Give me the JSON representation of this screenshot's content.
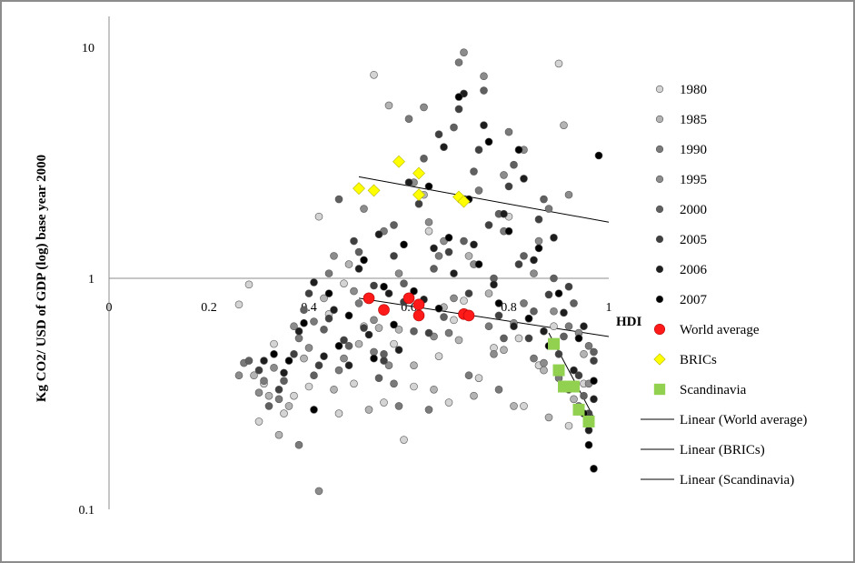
{
  "chart_data": {
    "type": "scatter",
    "title": "",
    "xlabel": "HDI",
    "ylabel": "Kg CO2/ USD of GDP (log) base year 2000",
    "xlim": [
      0,
      1
    ],
    "ylim": [
      0.1,
      10
    ],
    "y_scale": "log",
    "x_ticks": [
      "0",
      "0.2",
      "0.4",
      "0.6",
      "0.8",
      "1"
    ],
    "y_ticks": [
      "10",
      "1",
      "0.1"
    ],
    "grid": false,
    "legend_position": "right",
    "series": [
      {
        "name": "1980",
        "color": "#d4d4d4",
        "marker": "circle",
        "points": [
          [
            0.26,
            0.77
          ],
          [
            0.28,
            0.94
          ],
          [
            0.31,
            0.35
          ],
          [
            0.33,
            0.52
          ],
          [
            0.35,
            0.26
          ],
          [
            0.37,
            0.31
          ],
          [
            0.4,
            0.34
          ],
          [
            0.42,
            1.85
          ],
          [
            0.44,
            0.7
          ],
          [
            0.46,
            0.26
          ],
          [
            0.49,
            0.35
          ],
          [
            0.51,
            0.62
          ],
          [
            0.53,
            7.6
          ],
          [
            0.55,
            0.29
          ],
          [
            0.57,
            0.52
          ],
          [
            0.59,
            0.2
          ],
          [
            0.61,
            0.34
          ],
          [
            0.64,
            1.6
          ],
          [
            0.66,
            0.46
          ],
          [
            0.68,
            0.29
          ],
          [
            0.71,
            0.8
          ],
          [
            0.74,
            0.37
          ],
          [
            0.77,
            0.5
          ],
          [
            0.8,
            1.85
          ],
          [
            0.83,
            0.28
          ],
          [
            0.86,
            0.42
          ],
          [
            0.89,
            0.62
          ],
          [
            0.9,
            8.5
          ],
          [
            0.92,
            0.23
          ],
          [
            0.95,
            0.35
          ],
          [
            0.3,
            0.24
          ],
          [
            0.47,
            0.95
          ],
          [
            0.69,
            0.66
          ],
          [
            0.82,
            0.55
          ]
        ]
      },
      {
        "name": "1985",
        "color": "#b4b4b4",
        "marker": "circle",
        "points": [
          [
            0.29,
            0.38
          ],
          [
            0.32,
            0.31
          ],
          [
            0.36,
            0.28
          ],
          [
            0.39,
            0.45
          ],
          [
            0.43,
            0.82
          ],
          [
            0.45,
            0.33
          ],
          [
            0.48,
            1.15
          ],
          [
            0.5,
            0.52
          ],
          [
            0.52,
            0.27
          ],
          [
            0.56,
            5.6
          ],
          [
            0.58,
            0.6
          ],
          [
            0.61,
            0.42
          ],
          [
            0.63,
            2.3
          ],
          [
            0.65,
            0.33
          ],
          [
            0.67,
            0.75
          ],
          [
            0.7,
            0.54
          ],
          [
            0.73,
            0.31
          ],
          [
            0.76,
            0.86
          ],
          [
            0.79,
            0.49
          ],
          [
            0.81,
            0.28
          ],
          [
            0.84,
            0.67
          ],
          [
            0.87,
            0.4
          ],
          [
            0.91,
            4.6
          ],
          [
            0.93,
            0.3
          ],
          [
            0.95,
            0.47
          ],
          [
            0.34,
            0.21
          ],
          [
            0.54,
            0.61
          ],
          [
            0.72,
            1.25
          ],
          [
            0.88,
            0.25
          ]
        ]
      },
      {
        "name": "1990",
        "color": "#7a7a7a",
        "marker": "circle",
        "points": [
          [
            0.27,
            0.43
          ],
          [
            0.31,
            0.36
          ],
          [
            0.34,
            0.3
          ],
          [
            0.38,
            0.55
          ],
          [
            0.41,
            0.65
          ],
          [
            0.44,
            1.05
          ],
          [
            0.46,
            0.4
          ],
          [
            0.5,
            0.78
          ],
          [
            0.53,
            0.48
          ],
          [
            0.55,
            1.6
          ],
          [
            0.57,
            0.35
          ],
          [
            0.6,
            4.9
          ],
          [
            0.62,
            0.7
          ],
          [
            0.64,
            0.27
          ],
          [
            0.66,
            1.25
          ],
          [
            0.68,
            0.58
          ],
          [
            0.7,
            8.6
          ],
          [
            0.72,
            0.38
          ],
          [
            0.74,
            2.4
          ],
          [
            0.76,
            0.62
          ],
          [
            0.78,
            0.33
          ],
          [
            0.8,
            4.3
          ],
          [
            0.83,
            0.78
          ],
          [
            0.85,
            0.45
          ],
          [
            0.88,
            2.0
          ],
          [
            0.9,
            0.37
          ],
          [
            0.92,
            0.62
          ],
          [
            0.94,
            0.28
          ],
          [
            0.96,
            0.51
          ],
          [
            0.38,
            0.19
          ],
          [
            0.58,
            0.28
          ],
          [
            0.79,
            1.6
          ]
        ]
      },
      {
        "name": "1995",
        "color": "#8c8c8c",
        "marker": "circle",
        "points": [
          [
            0.26,
            0.38
          ],
          [
            0.3,
            0.32
          ],
          [
            0.33,
            0.41
          ],
          [
            0.37,
            0.62
          ],
          [
            0.4,
            0.5
          ],
          [
            0.42,
            0.12
          ],
          [
            0.45,
            1.25
          ],
          [
            0.47,
            0.45
          ],
          [
            0.49,
            0.88
          ],
          [
            0.51,
            2.0
          ],
          [
            0.53,
            0.66
          ],
          [
            0.56,
            0.42
          ],
          [
            0.58,
            1.05
          ],
          [
            0.61,
            2.6
          ],
          [
            0.63,
            5.5
          ],
          [
            0.65,
            0.56
          ],
          [
            0.67,
            1.45
          ],
          [
            0.69,
            0.82
          ],
          [
            0.71,
            9.5
          ],
          [
            0.73,
            1.15
          ],
          [
            0.75,
            7.5
          ],
          [
            0.77,
            0.47
          ],
          [
            0.79,
            2.8
          ],
          [
            0.81,
            0.64
          ],
          [
            0.83,
            3.6
          ],
          [
            0.85,
            1.05
          ],
          [
            0.87,
            0.43
          ],
          [
            0.89,
            0.72
          ],
          [
            0.92,
            2.3
          ],
          [
            0.94,
            0.58
          ],
          [
            0.96,
            0.35
          ],
          [
            0.64,
            1.75
          ],
          [
            0.86,
            1.45
          ]
        ]
      },
      {
        "name": "2000",
        "color": "#606060",
        "marker": "circle",
        "points": [
          [
            0.28,
            0.44
          ],
          [
            0.32,
            0.28
          ],
          [
            0.35,
            0.36
          ],
          [
            0.39,
            0.73
          ],
          [
            0.41,
            0.38
          ],
          [
            0.43,
            0.6
          ],
          [
            0.46,
            2.2
          ],
          [
            0.48,
            0.51
          ],
          [
            0.5,
            1.3
          ],
          [
            0.52,
            0.82
          ],
          [
            0.54,
            0.37
          ],
          [
            0.57,
            1.7
          ],
          [
            0.59,
            0.95
          ],
          [
            0.61,
            0.59
          ],
          [
            0.63,
            3.3
          ],
          [
            0.65,
            1.1
          ],
          [
            0.67,
            0.68
          ],
          [
            0.69,
            4.5
          ],
          [
            0.71,
            1.45
          ],
          [
            0.73,
            2.9
          ],
          [
            0.75,
            6.5
          ],
          [
            0.77,
            1.0
          ],
          [
            0.79,
            0.55
          ],
          [
            0.81,
            3.1
          ],
          [
            0.83,
            1.25
          ],
          [
            0.85,
            0.72
          ],
          [
            0.87,
            2.2
          ],
          [
            0.89,
            1.0
          ],
          [
            0.91,
            0.56
          ],
          [
            0.93,
            0.78
          ],
          [
            0.95,
            0.31
          ],
          [
            0.97,
            0.48
          ],
          [
            0.55,
            0.47
          ],
          [
            0.78,
            1.9
          ]
        ]
      },
      {
        "name": "2005",
        "color": "#404040",
        "marker": "circle",
        "points": [
          [
            0.3,
            0.4
          ],
          [
            0.34,
            0.33
          ],
          [
            0.37,
            0.47
          ],
          [
            0.4,
            0.86
          ],
          [
            0.42,
            0.42
          ],
          [
            0.44,
            0.67
          ],
          [
            0.47,
            0.54
          ],
          [
            0.49,
            1.45
          ],
          [
            0.51,
            0.61
          ],
          [
            0.53,
            0.93
          ],
          [
            0.55,
            0.44
          ],
          [
            0.57,
            1.25
          ],
          [
            0.59,
            0.79
          ],
          [
            0.62,
            2.1
          ],
          [
            0.64,
            0.58
          ],
          [
            0.66,
            4.2
          ],
          [
            0.68,
            1.3
          ],
          [
            0.7,
            5.4
          ],
          [
            0.72,
            0.86
          ],
          [
            0.74,
            3.6
          ],
          [
            0.76,
            1.7
          ],
          [
            0.78,
            0.69
          ],
          [
            0.8,
            2.5
          ],
          [
            0.82,
            1.15
          ],
          [
            0.84,
            0.55
          ],
          [
            0.86,
            1.8
          ],
          [
            0.88,
            0.85
          ],
          [
            0.9,
            0.47
          ],
          [
            0.92,
            0.92
          ],
          [
            0.94,
            0.38
          ],
          [
            0.96,
            0.26
          ],
          [
            0.97,
            0.44
          ]
        ]
      },
      {
        "name": "2006",
        "color": "#1e1e1e",
        "marker": "circle",
        "points": [
          [
            0.31,
            0.44
          ],
          [
            0.35,
            0.39
          ],
          [
            0.38,
            0.59
          ],
          [
            0.41,
            0.96
          ],
          [
            0.43,
            0.46
          ],
          [
            0.45,
            0.73
          ],
          [
            0.48,
            0.42
          ],
          [
            0.5,
            1.1
          ],
          [
            0.52,
            0.57
          ],
          [
            0.54,
            1.55
          ],
          [
            0.56,
            0.86
          ],
          [
            0.58,
            0.49
          ],
          [
            0.6,
            2.6
          ],
          [
            0.63,
            0.81
          ],
          [
            0.65,
            1.35
          ],
          [
            0.67,
            3.7
          ],
          [
            0.69,
            1.05
          ],
          [
            0.71,
            6.3
          ],
          [
            0.73,
            1.4
          ],
          [
            0.75,
            4.6
          ],
          [
            0.77,
            0.94
          ],
          [
            0.79,
            1.9
          ],
          [
            0.81,
            0.62
          ],
          [
            0.83,
            2.7
          ],
          [
            0.85,
            1.2
          ],
          [
            0.87,
            0.59
          ],
          [
            0.89,
            1.5
          ],
          [
            0.91,
            0.71
          ],
          [
            0.93,
            0.4
          ],
          [
            0.95,
            0.62
          ],
          [
            0.96,
            0.22
          ],
          [
            0.97,
            0.3
          ]
        ]
      },
      {
        "name": "2007",
        "color": "#000000",
        "marker": "circle",
        "points": [
          [
            0.33,
            0.47
          ],
          [
            0.36,
            0.44
          ],
          [
            0.39,
            0.64
          ],
          [
            0.41,
            0.27
          ],
          [
            0.44,
            0.86
          ],
          [
            0.46,
            0.51
          ],
          [
            0.48,
            0.69
          ],
          [
            0.51,
            1.2
          ],
          [
            0.53,
            0.45
          ],
          [
            0.55,
            0.92
          ],
          [
            0.57,
            0.63
          ],
          [
            0.59,
            1.4
          ],
          [
            0.61,
            0.88
          ],
          [
            0.64,
            2.5
          ],
          [
            0.66,
            0.74
          ],
          [
            0.68,
            1.5
          ],
          [
            0.7,
            6.1
          ],
          [
            0.72,
            2.2
          ],
          [
            0.74,
            1.15
          ],
          [
            0.76,
            3.9
          ],
          [
            0.78,
            0.78
          ],
          [
            0.8,
            1.6
          ],
          [
            0.82,
            3.6
          ],
          [
            0.84,
            0.67
          ],
          [
            0.86,
            1.35
          ],
          [
            0.88,
            0.51
          ],
          [
            0.9,
            0.86
          ],
          [
            0.92,
            0.33
          ],
          [
            0.94,
            0.55
          ],
          [
            0.96,
            0.19
          ],
          [
            0.97,
            0.15
          ],
          [
            0.97,
            0.36
          ],
          [
            0.95,
            0.26
          ],
          [
            0.98,
            3.4
          ]
        ]
      },
      {
        "name": "World average",
        "color": "#ff1a1a",
        "marker": "circle-large",
        "points": [
          [
            0.52,
            0.82
          ],
          [
            0.55,
            0.73
          ],
          [
            0.6,
            0.82
          ],
          [
            0.62,
            0.77
          ],
          [
            0.62,
            0.69
          ],
          [
            0.71,
            0.7
          ],
          [
            0.72,
            0.69
          ]
        ]
      },
      {
        "name": "BRICs",
        "color": "#ffff00",
        "marker": "diamond",
        "points": [
          [
            0.5,
            2.45
          ],
          [
            0.53,
            2.4
          ],
          [
            0.58,
            3.2
          ],
          [
            0.62,
            2.85
          ],
          [
            0.62,
            2.3
          ],
          [
            0.7,
            2.25
          ],
          [
            0.71,
            2.15
          ]
        ]
      },
      {
        "name": "Scandinavia",
        "color": "#92d050",
        "marker": "square",
        "points": [
          [
            0.89,
            0.52
          ],
          [
            0.9,
            0.4
          ],
          [
            0.91,
            0.34
          ],
          [
            0.93,
            0.34
          ],
          [
            0.94,
            0.27
          ],
          [
            0.96,
            0.24
          ]
        ]
      },
      {
        "name": "Linear (World average)",
        "color": "#000000",
        "marker": "line",
        "line": [
          [
            0.5,
            0.82
          ],
          [
            1.0,
            0.56
          ]
        ]
      },
      {
        "name": "Linear (BRICs)",
        "color": "#000000",
        "marker": "line",
        "line": [
          [
            0.5,
            2.75
          ],
          [
            1.0,
            1.75
          ]
        ]
      },
      {
        "name": "Linear (Scandinavia)",
        "color": "#000000",
        "marker": "line",
        "line": [
          [
            0.88,
            0.58
          ],
          [
            0.97,
            0.25
          ]
        ]
      }
    ]
  }
}
